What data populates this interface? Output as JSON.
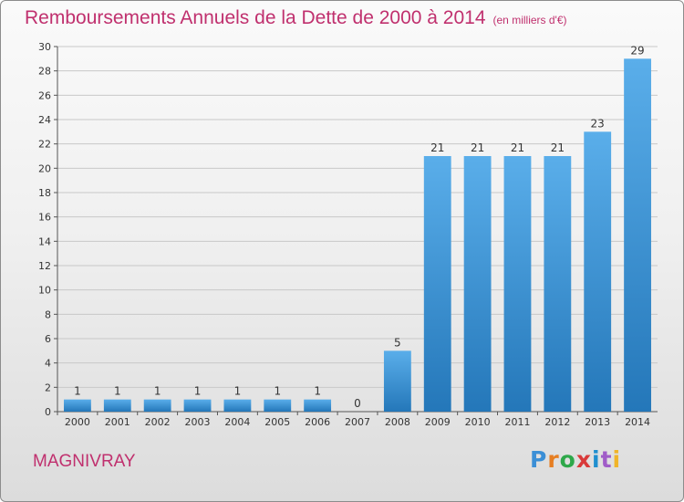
{
  "title": "Remboursements Annuels de la Dette de 2000 à 2014",
  "unit_note": "(en milliers d'€)",
  "commune": "MAGNIVRAY",
  "brand": {
    "letters": [
      "P",
      "r",
      "o",
      "x",
      "i",
      "t",
      "i"
    ],
    "colors": [
      "#3b8fd6",
      "#e67e22",
      "#2ea84a",
      "#d93a3a",
      "#1f8fcf",
      "#a05cc8",
      "#f0b429"
    ]
  },
  "colors": {
    "title": "#c0306e",
    "bar_light": "#5aaeea",
    "bar_dark": "#2477b9",
    "grid": "#c8c8c8"
  },
  "chart_data": {
    "type": "bar",
    "categories": [
      "2000",
      "2001",
      "2002",
      "2003",
      "2004",
      "2005",
      "2006",
      "2007",
      "2008",
      "2009",
      "2010",
      "2011",
      "2012",
      "2013",
      "2014"
    ],
    "values": [
      1,
      1,
      1,
      1,
      1,
      1,
      1,
      0,
      5,
      21,
      21,
      21,
      21,
      23,
      29
    ],
    "value_labels": [
      "1",
      "1",
      "1",
      "1",
      "1",
      "1",
      "1",
      "0",
      "5",
      "21",
      "21",
      "21",
      "21",
      "23",
      "29"
    ],
    "ylim": [
      0,
      30
    ],
    "yticks": [
      0,
      2,
      4,
      6,
      8,
      10,
      12,
      14,
      16,
      18,
      20,
      22,
      24,
      26,
      28,
      30
    ],
    "grid": true,
    "legend": "none"
  }
}
